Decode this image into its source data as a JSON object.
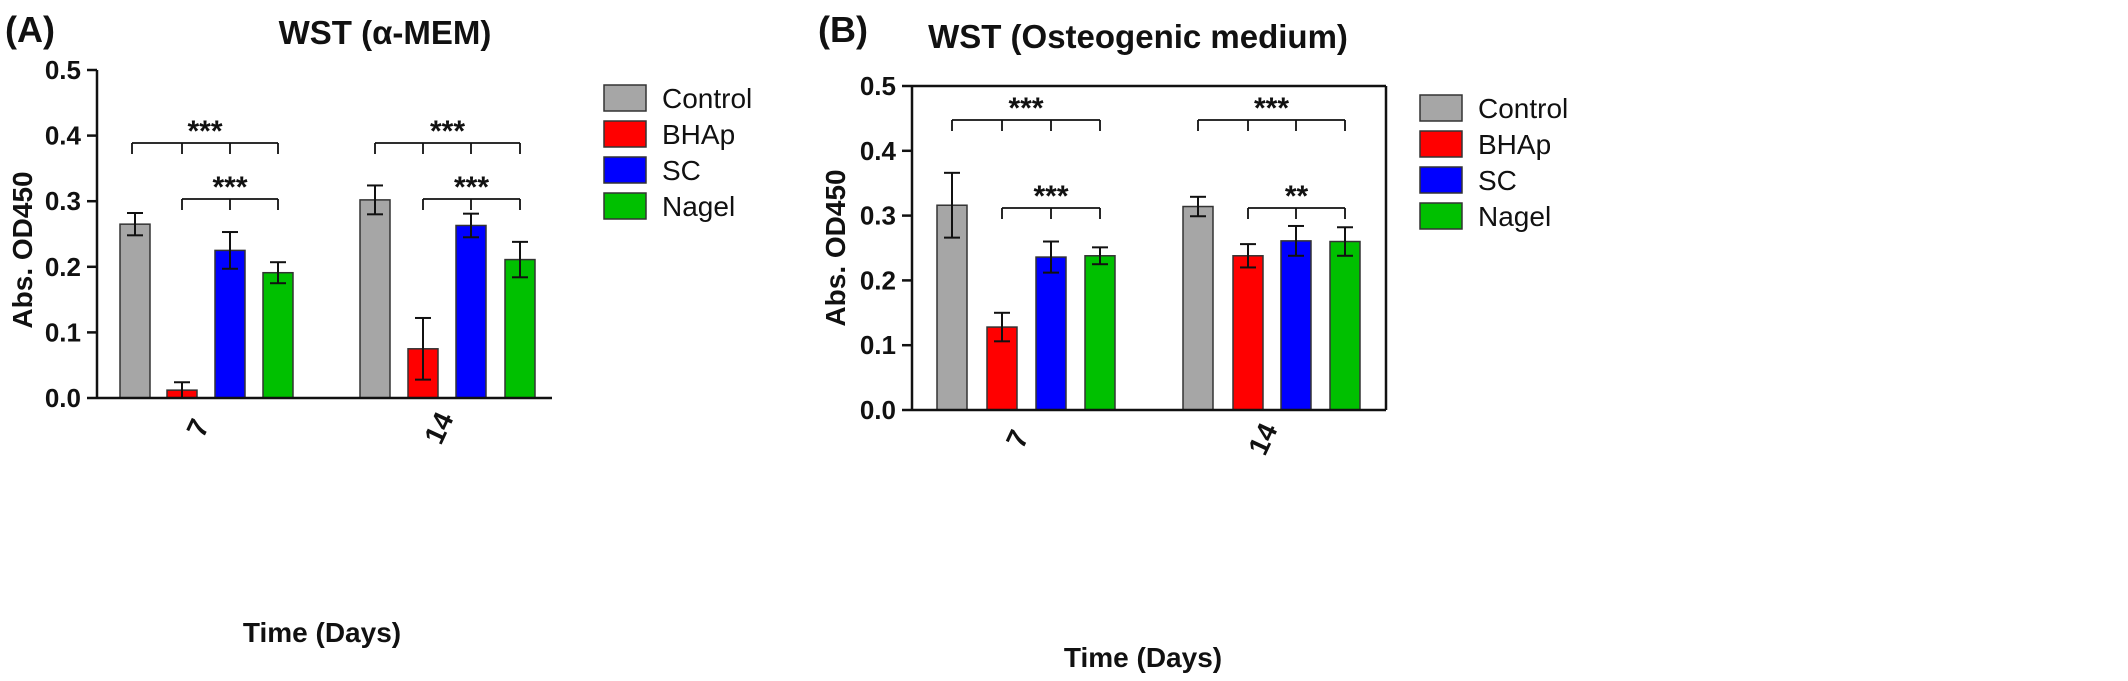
{
  "colors": {
    "Control": "#a6a6a6",
    "BHAp": "#ff0000",
    "SC": "#0000ff",
    "Nagel": "#00c000"
  },
  "panels": [
    {
      "panel_label": "(A)",
      "title": "WST (α-MEM)",
      "legend": [
        "Control",
        "BHAp",
        "SC",
        "Nagel"
      ],
      "annotations": [
        {
          "text": "***",
          "group": 0
        },
        {
          "text": "***",
          "group": 0
        },
        {
          "text": "***",
          "group": 1
        },
        {
          "text": "***",
          "group": 1
        }
      ]
    },
    {
      "panel_label": "(B)",
      "title": "WST  (Osteogenic medium)",
      "legend": [
        "Control",
        "BHAp",
        "SC",
        "Nagel"
      ],
      "annotations": [
        {
          "text": "***",
          "group": 0
        },
        {
          "text": "***",
          "group": 0
        },
        {
          "text": "***",
          "group": 1
        },
        {
          "text": "**",
          "group": 1
        }
      ]
    }
  ],
  "chart_data": [
    {
      "type": "bar",
      "title": "WST (α-MEM)",
      "xlabel": "Time (Days)",
      "ylabel": "Abs. OD450",
      "categories": [
        "7",
        "14"
      ],
      "ylim": [
        0,
        0.5
      ],
      "yticks": [
        "0.0",
        "0.1",
        "0.2",
        "0.3",
        "0.4",
        "0.5"
      ],
      "legend_position": "right",
      "series": [
        {
          "name": "Control",
          "values": [
            0.265,
            0.302
          ],
          "errors": [
            0.017,
            0.022
          ]
        },
        {
          "name": "BHAp",
          "values": [
            0.012,
            0.075
          ],
          "errors": [
            0.012,
            0.047
          ]
        },
        {
          "name": "SC",
          "values": [
            0.225,
            0.263
          ],
          "errors": [
            0.028,
            0.018
          ]
        },
        {
          "name": "Nagel",
          "values": [
            0.191,
            0.211
          ],
          "errors": [
            0.016,
            0.027
          ]
        }
      ]
    },
    {
      "type": "bar",
      "title": "WST  (Osteogenic medium)",
      "xlabel": "Time (Days)",
      "ylabel": "Abs. OD450",
      "categories": [
        "7",
        "14"
      ],
      "ylim": [
        0,
        0.5
      ],
      "yticks": [
        "0.0",
        "0.1",
        "0.2",
        "0.3",
        "0.4",
        "0.5"
      ],
      "legend_position": "right",
      "series": [
        {
          "name": "Control",
          "values": [
            0.316,
            0.314
          ],
          "errors": [
            0.05,
            0.015
          ]
        },
        {
          "name": "BHAp",
          "values": [
            0.128,
            0.238
          ],
          "errors": [
            0.022,
            0.018
          ]
        },
        {
          "name": "SC",
          "values": [
            0.236,
            0.261
          ],
          "errors": [
            0.024,
            0.023
          ]
        },
        {
          "name": "Nagel",
          "values": [
            0.238,
            0.26
          ],
          "errors": [
            0.013,
            0.022
          ]
        }
      ]
    }
  ]
}
